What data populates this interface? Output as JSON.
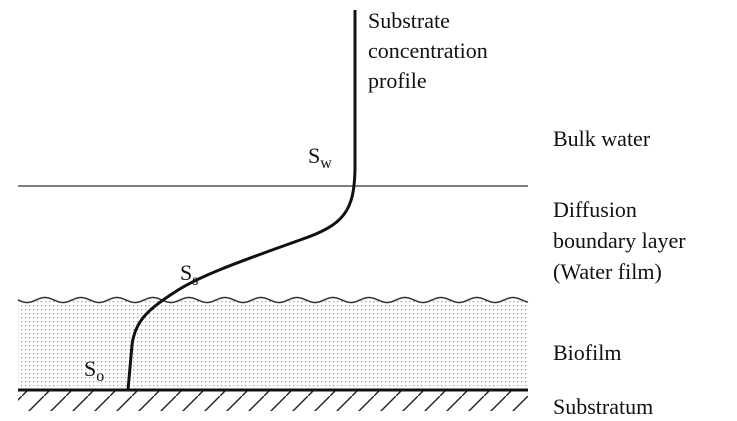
{
  "curve_label": [
    "Substrate",
    "concentration",
    "profile"
  ],
  "points": [
    {
      "base": "S",
      "sub": "w"
    },
    {
      "base": "S",
      "sub": "s"
    },
    {
      "base": "S",
      "sub": "o"
    }
  ],
  "zones": [
    {
      "lines": [
        "Bulk water"
      ]
    },
    {
      "lines": [
        "Diffusion",
        "boundary layer",
        "(Water film)"
      ]
    },
    {
      "lines": [
        "Biofilm"
      ]
    },
    {
      "lines": [
        "Substratum"
      ]
    }
  ]
}
